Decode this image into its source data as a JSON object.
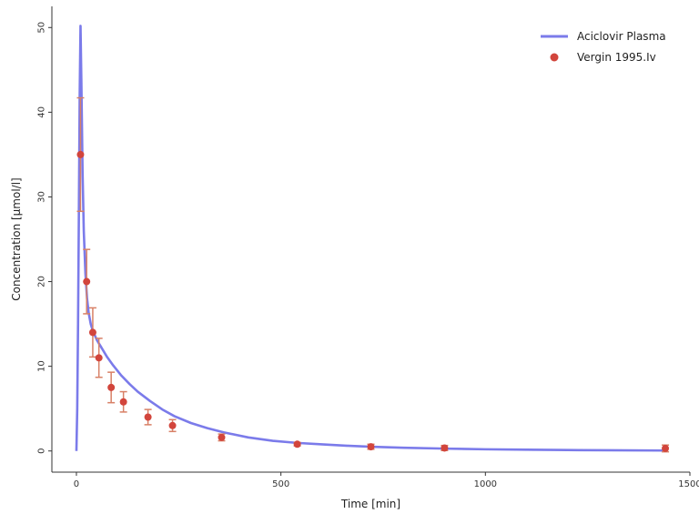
{
  "chart_data": {
    "type": "line",
    "xlabel": "Time [min]",
    "ylabel": "Concentration  [µmol/l]",
    "xlim": [
      -60,
      1500
    ],
    "ylim": [
      -2.5,
      52.5
    ],
    "x_ticks": [
      0,
      500,
      1000,
      1500
    ],
    "y_ticks": [
      0,
      10,
      20,
      30,
      40,
      50
    ],
    "grid": false,
    "legend_position": "top-right",
    "colors": {
      "simulation": "#7b7bea",
      "observed": "#d2453c",
      "error_bar": "#d88066"
    },
    "series": [
      {
        "name": "Aciclovir Plasma",
        "kind": "line",
        "x": [
          0,
          2,
          4,
          6,
          8,
          10,
          12,
          15,
          18,
          22,
          26,
          30,
          35,
          40,
          50,
          60,
          75,
          90,
          110,
          130,
          150,
          180,
          210,
          240,
          280,
          320,
          360,
          420,
          480,
          540,
          600,
          660,
          720,
          800,
          900,
          1000,
          1100,
          1200,
          1300,
          1440
        ],
        "y": [
          0,
          5,
          15,
          28,
          42,
          50.2,
          44,
          33,
          26,
          21,
          18,
          16.3,
          15,
          14.2,
          13.1,
          12.3,
          11.1,
          10.1,
          8.9,
          7.9,
          7.0,
          5.9,
          4.9,
          4.1,
          3.3,
          2.7,
          2.2,
          1.6,
          1.2,
          0.95,
          0.78,
          0.62,
          0.5,
          0.38,
          0.28,
          0.2,
          0.15,
          0.11,
          0.08,
          0.05
        ]
      },
      {
        "name": "Vergin 1995.Iv",
        "kind": "points",
        "x": [
          10,
          25,
          40,
          55,
          85,
          115,
          175,
          235,
          355,
          540,
          720,
          900,
          1440
        ],
        "y": [
          35,
          20,
          14,
          11,
          7.5,
          5.8,
          4,
          3,
          1.6,
          0.8,
          0.5,
          0.35,
          0.3
        ],
        "err": [
          6.7,
          3.8,
          2.9,
          2.3,
          1.8,
          1.2,
          0.9,
          0.7,
          0.4,
          0.2,
          0.3,
          0.3,
          0.4
        ]
      }
    ]
  }
}
